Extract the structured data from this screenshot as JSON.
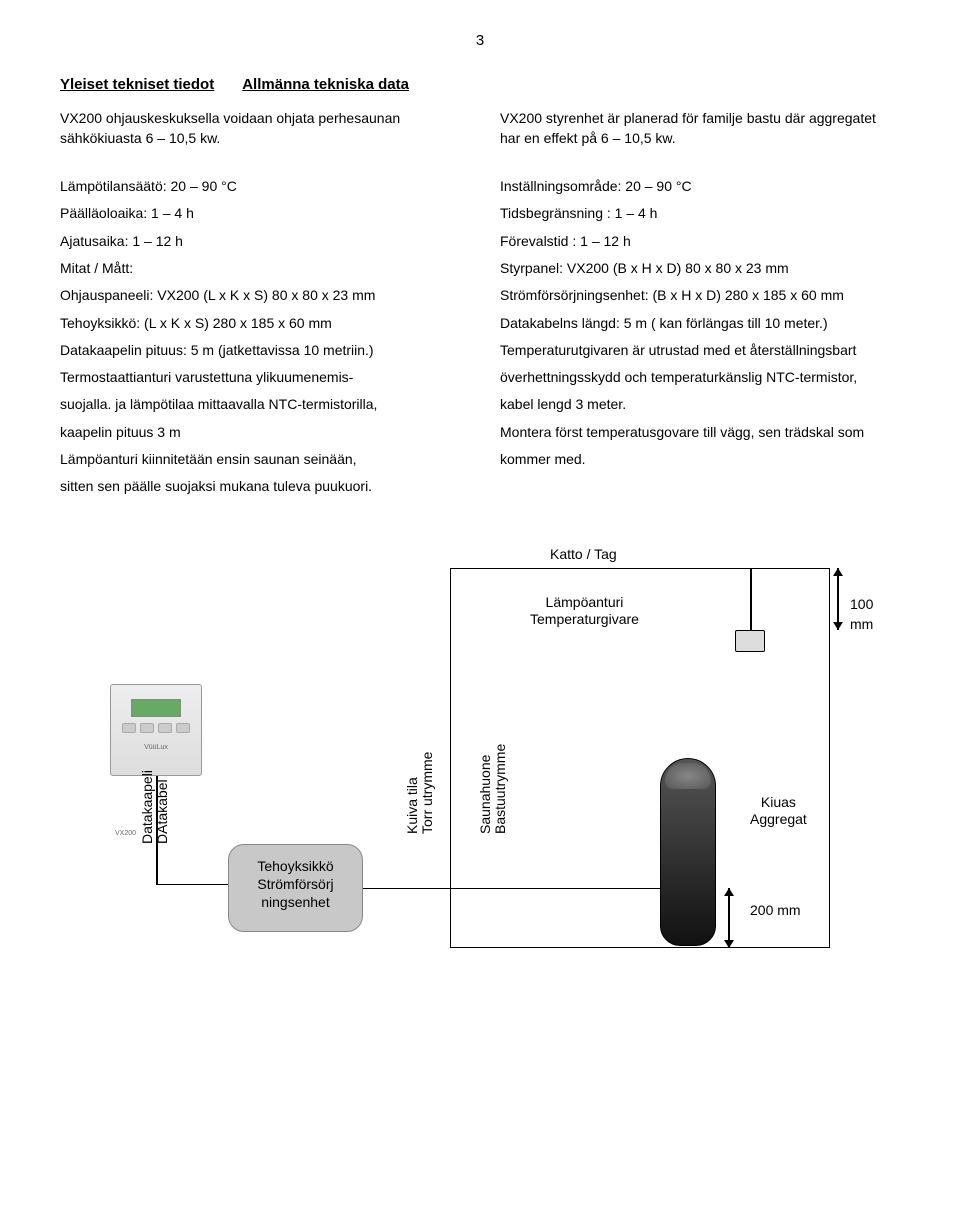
{
  "page_number": "3",
  "headings": {
    "fi": "Yleiset tekniset tiedot",
    "sv": "Allmänna tekniska data"
  },
  "intro": {
    "fi": "VX200 ohjauskeskuksella voidaan ohjata perhesaunan sähkökiuasta 6 – 10,5 kw.",
    "sv": "VX200 styrenhet är planerad för familje bastu där aggregatet har en effekt på 6 – 10,5 kw."
  },
  "specs_fi": [
    "Lämpötilansäätö: 20 – 90 °C",
    "Päälläoloaika: 1 – 4 h",
    "Ajatusaika: 1 – 12 h",
    "Mitat / Mått:",
    "Ohjauspaneeli: VX200 (L x K x S) 80 x 80 x 23 mm",
    "Tehoyksikkö: (L x K x S) 280 x 185 x 60 mm",
    "Datakaapelin pituus: 5 m (jatkettavissa 10 metriin.)",
    "Termostaattianturi varustettuna ylikuumenemis-",
    "suojalla. ja lämpötilaa mittaavalla NTC-termistorilla,",
    "kaapelin pituus 3 m",
    "Lämpöanturi kiinnitetään ensin saunan seinään,",
    "sitten sen päälle suojaksi mukana tuleva puukuori."
  ],
  "specs_sv": [
    "Inställningsområde: 20 – 90 °C",
    "Tidsbegränsning : 1 – 4 h",
    "Förevalstid : 1 – 12 h",
    "",
    "Styrpanel: VX200 (B x H x D) 80 x 80 x 23 mm",
    " Strömförsörjningsenhet: (B x H x D) 280 x 185 x 60 mm",
    "Datakabelns längd: 5 m ( kan förlängas till 10 meter.)",
    "Temperaturutgivaren är utrustad med et återställningsbart",
    "överhettningsskydd och temperaturkänslig NTC-termistor,",
    "kabel lengd 3 meter.",
    "Montera först temperatusgovare till vägg, sen trädskal som",
    "kommer med."
  ],
  "diagram": {
    "katto": "Katto / Tag",
    "sensor_fi": "Lämpöanturi",
    "sensor_sv": "Temperaturgivare",
    "dim100": "100 mm",
    "panel_model": "VX200",
    "panel_brand": "VüüLux",
    "datacable_fi": "Datakaapeli",
    "datacable_sv": "DAtakabel",
    "teho_fi": "Tehoyksikkö",
    "teho_sv1": "Strömförsörj",
    "teho_sv2": "ningsenhet",
    "kuiva_fi": "Kuiva tila",
    "kuiva_sv": "Torr utrymme",
    "sauna_fi": "Saunahuone",
    "sauna_sv": "Bastuutrymme",
    "kiuas_fi": "Kiuas",
    "kiuas_sv": "Aggregat",
    "dim200": "200 mm",
    "colors": {
      "line": "#000000",
      "box_fill": "#c8c8c8",
      "panel_bg": "#dddddd",
      "heater": "#222222"
    }
  }
}
